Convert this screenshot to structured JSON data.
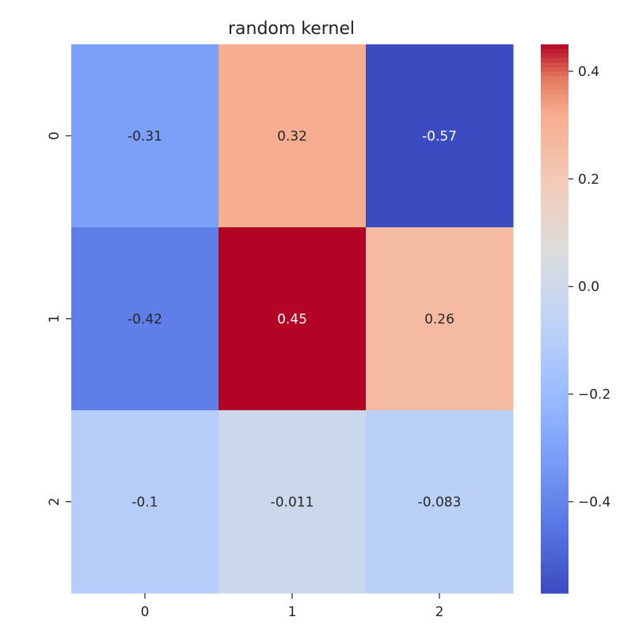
{
  "chart_data": {
    "type": "heatmap",
    "title": "random kernel",
    "xlabel": "",
    "ylabel": "",
    "x_categories": [
      "0",
      "1",
      "2"
    ],
    "y_categories": [
      "0",
      "1",
      "2"
    ],
    "values": [
      [
        -0.31,
        0.32,
        -0.57
      ],
      [
        -0.42,
        0.45,
        0.26
      ],
      [
        -0.1,
        -0.011,
        -0.083
      ]
    ],
    "annotations": [
      [
        "-0.31",
        "0.32",
        "-0.57"
      ],
      [
        "-0.42",
        "0.45",
        "0.26"
      ],
      [
        "-0.1",
        "-0.011",
        "-0.083"
      ]
    ],
    "colormap": "coolwarm",
    "color_range": [
      -0.57,
      0.45
    ],
    "colorbar_ticks": [
      0.4,
      0.2,
      0.0,
      -0.2,
      -0.4
    ],
    "colorbar_tick_labels": [
      "0.4",
      "0.2",
      "0.0",
      "−0.2",
      "−0.4"
    ],
    "colorbar_position": "right"
  }
}
